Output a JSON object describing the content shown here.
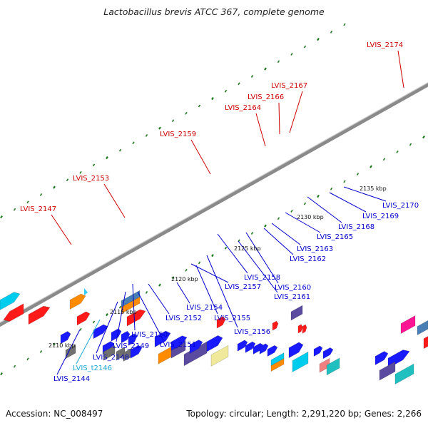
{
  "header": {
    "title": "Lactobacillus brevis ATCC 367, complete genome"
  },
  "footer": {
    "accession": "Accession: NC_008497",
    "summary": "Topology: circular; Length: 2,291,220 bp; Genes: 2,266"
  },
  "colors": {
    "backbone": "#8a8a8a",
    "label_red": "#cc0000",
    "label_blue": "#0000cc",
    "label_cyan": "#1ea7d6",
    "tick_dot": "#1f7a1f"
  },
  "ruler": [
    {
      "text": "2110 kbp"
    },
    {
      "text": "2115 kbp"
    },
    {
      "text": "2120 kbp"
    },
    {
      "text": "2125 kbp"
    },
    {
      "text": "2130 kbp"
    },
    {
      "text": "2135 kbp"
    }
  ],
  "gene_labels": [
    {
      "text": "LVIS_2147",
      "color": "red"
    },
    {
      "text": "LVIS_2153",
      "color": "red"
    },
    {
      "text": "LVIS_2159",
      "color": "red"
    },
    {
      "text": "LVIS_2164",
      "color": "red"
    },
    {
      "text": "LVIS_2166",
      "color": "red"
    },
    {
      "text": "LVIS_2167",
      "color": "red"
    },
    {
      "text": "LVIS_2174",
      "color": "red"
    },
    {
      "text": "LVIS_2144",
      "color": "blue"
    },
    {
      "text": "LVIS_t2146",
      "color": "cyan"
    },
    {
      "text": "LVIS_2148",
      "color": "blue"
    },
    {
      "text": "LVIS_2149",
      "color": "blue"
    },
    {
      "text": "LVIS_2150",
      "color": "blue"
    },
    {
      "text": "LVIS_2151",
      "color": "blue"
    },
    {
      "text": "LVIS_2152",
      "color": "blue"
    },
    {
      "text": "LVIS_2154",
      "color": "blue"
    },
    {
      "text": "LVIS_2155",
      "color": "blue"
    },
    {
      "text": "LVIS_2156",
      "color": "blue"
    },
    {
      "text": "LVIS_2157",
      "color": "blue"
    },
    {
      "text": "LVIS_2158",
      "color": "blue"
    },
    {
      "text": "LVIS_2160",
      "color": "blue"
    },
    {
      "text": "LVIS_2161",
      "color": "blue"
    },
    {
      "text": "LVIS_2162",
      "color": "blue"
    },
    {
      "text": "LVIS_2163",
      "color": "blue"
    },
    {
      "text": "LVIS_2165",
      "color": "blue"
    },
    {
      "text": "LVIS_2168",
      "color": "blue"
    },
    {
      "text": "LVIS_2169",
      "color": "blue"
    },
    {
      "text": "LVIS_2170",
      "color": "blue"
    }
  ],
  "genes": [
    {
      "color": "#1a1aff"
    },
    {
      "color": "#ff1a1a"
    },
    {
      "color": "#ff8c00"
    },
    {
      "color": "#00ccee"
    },
    {
      "color": "#5a4aa0"
    },
    {
      "color": "#707070"
    },
    {
      "color": "#f0e89a"
    },
    {
      "color": "#4a7fb5"
    },
    {
      "color": "#ff1493"
    },
    {
      "color": "#f08080"
    },
    {
      "color": "#20c0c0"
    }
  ]
}
